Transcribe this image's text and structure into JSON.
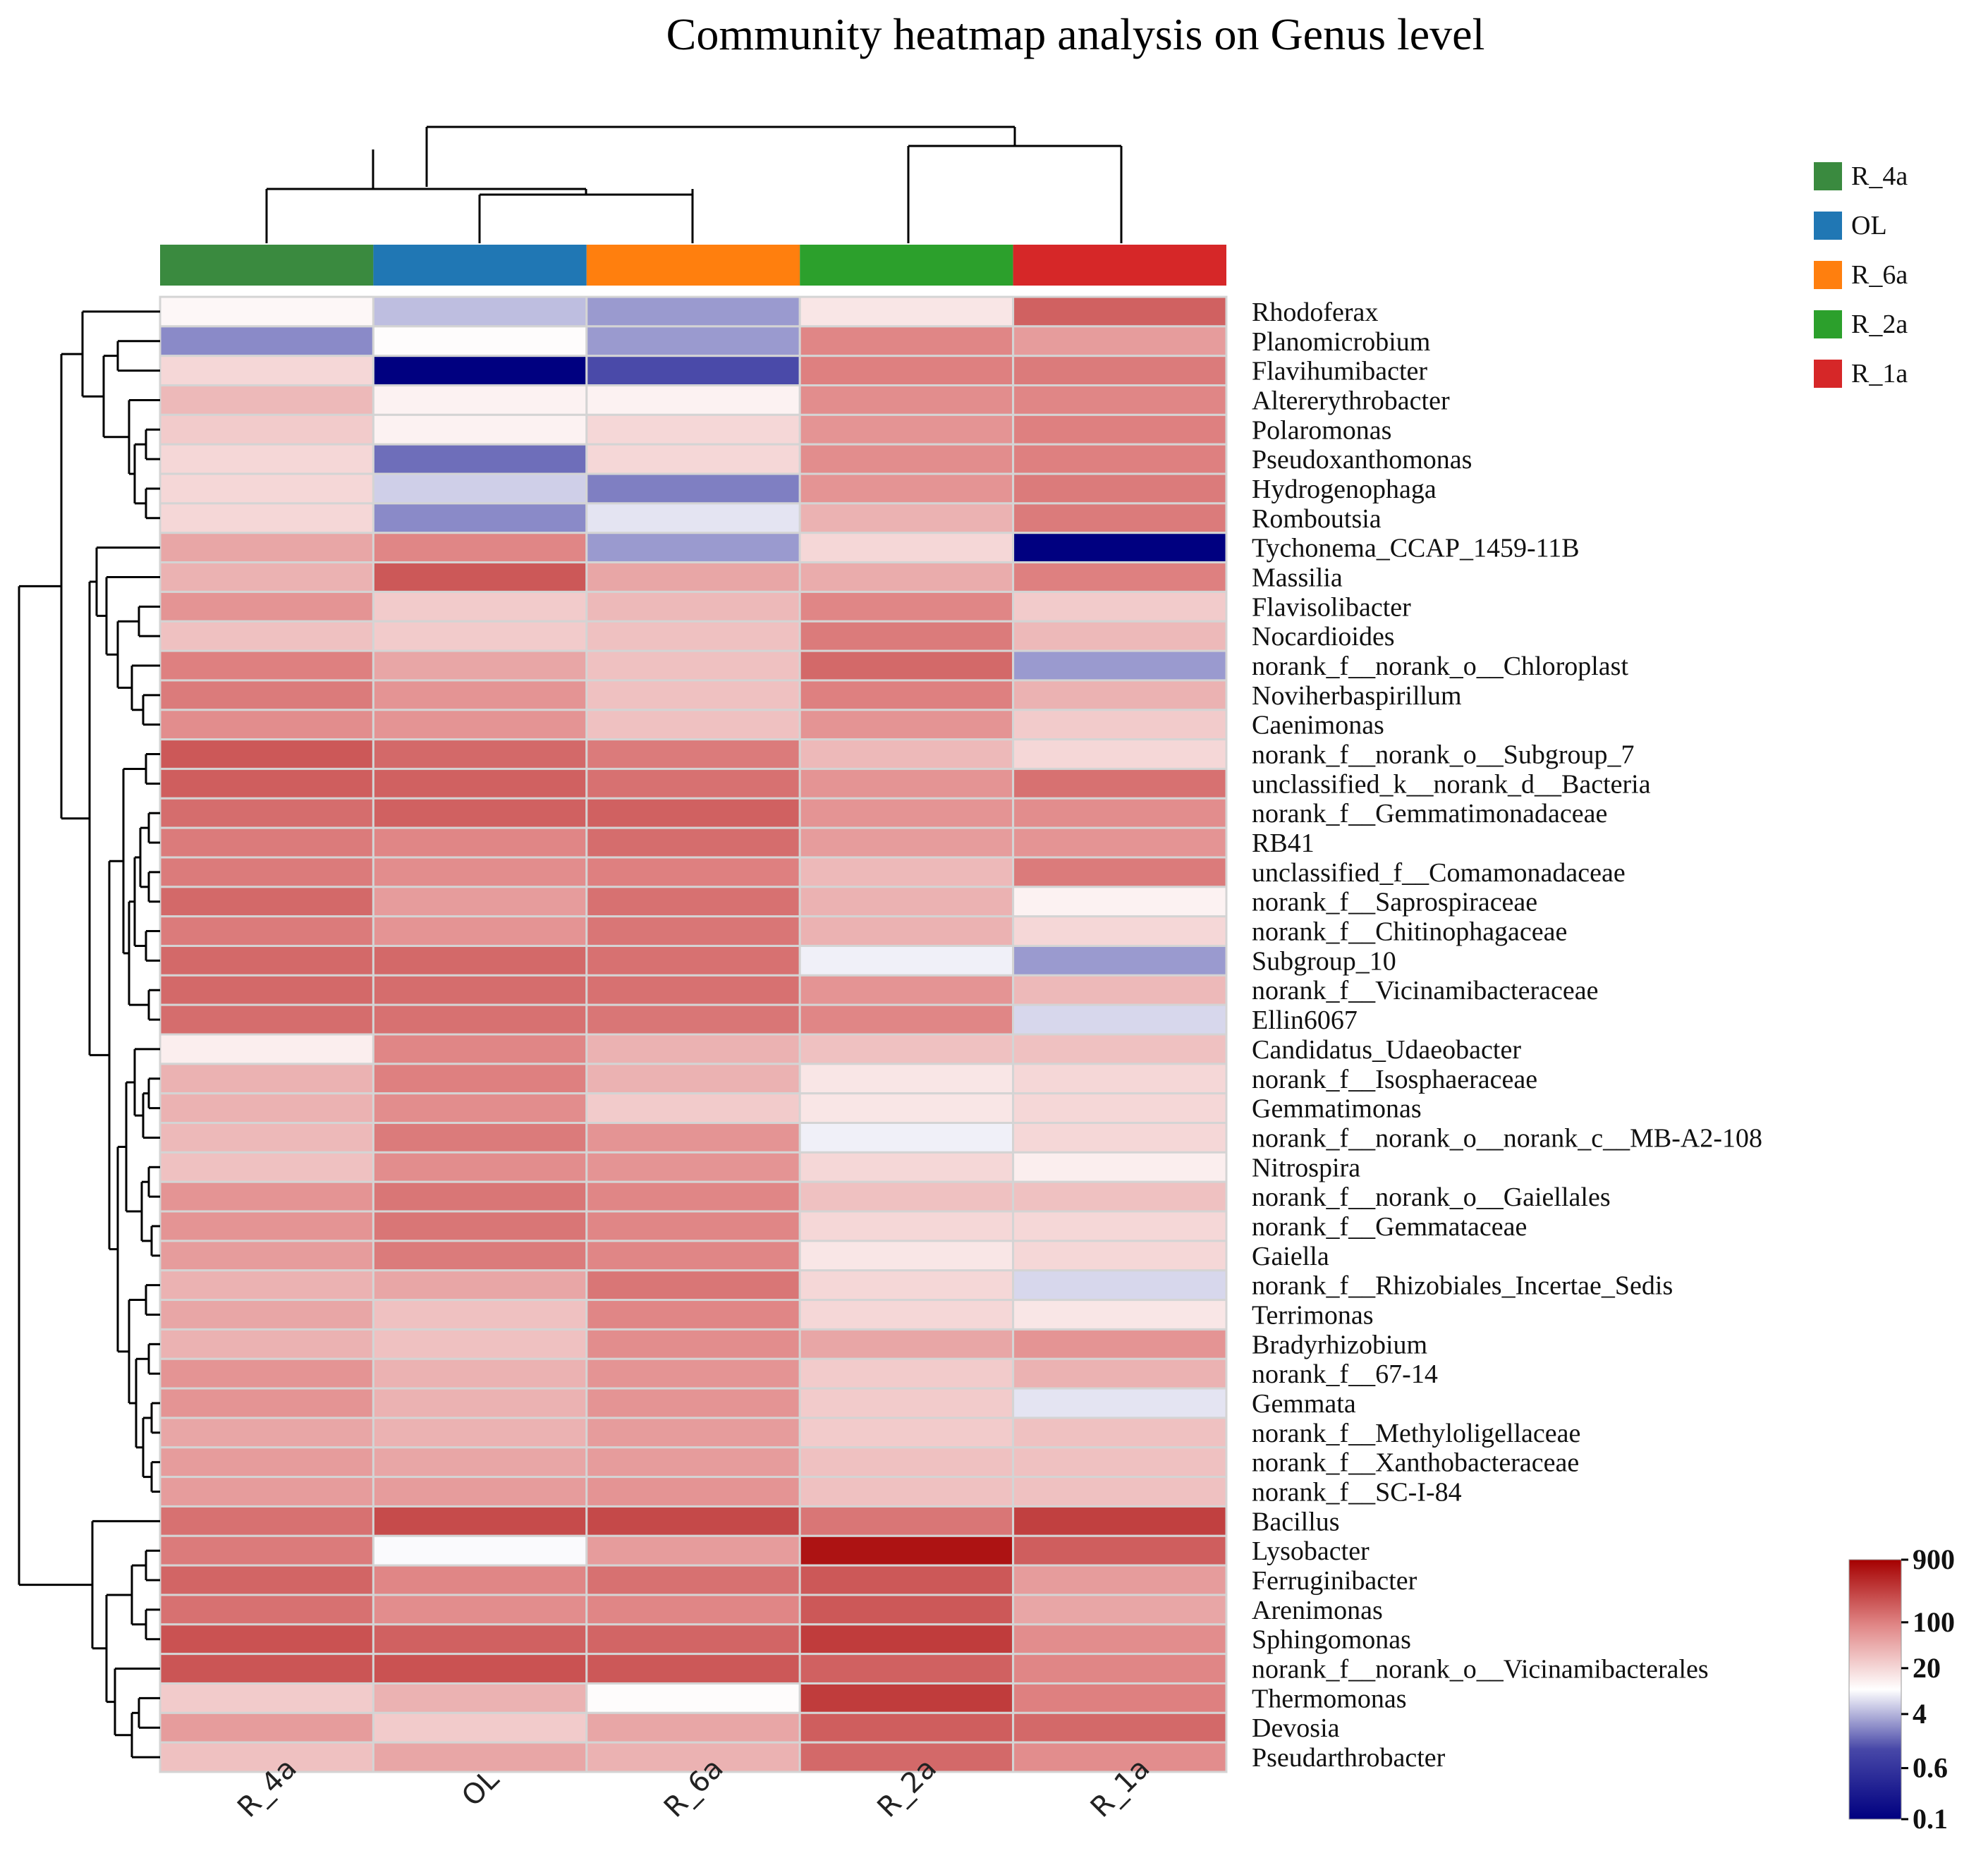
{
  "chart_data": {
    "type": "heatmap",
    "title": "Community heatmap analysis on Genus level",
    "value_scale": "log10 relative abundance",
    "columns": [
      "R_4a",
      "OL",
      "R_6a",
      "R_2a",
      "R_1a"
    ],
    "column_group_colors": [
      "#3a8a3f",
      "#2077b4",
      "#ff7f0e",
      "#2ca02c",
      "#d62728"
    ],
    "legend": [
      {
        "label": "R_4a",
        "color": "#3a8a3f"
      },
      {
        "label": "OL",
        "color": "#2077b4"
      },
      {
        "label": "R_6a",
        "color": "#ff7f0e"
      },
      {
        "label": "R_2a",
        "color": "#2ca02c"
      },
      {
        "label": "R_1a",
        "color": "#d62728"
      }
    ],
    "color_scale": {
      "ticks": [
        "900",
        "100",
        "20",
        "4",
        "0.6",
        "0.1"
      ],
      "tick_values": [
        900,
        100,
        20,
        4,
        0.6,
        0.1
      ],
      "colors": [
        "#000080",
        "#4040a0",
        "#ffffff",
        "#e08080",
        "#a00000"
      ]
    },
    "rows": [
      {
        "label": "Rhodoferax",
        "values": [
          11,
          4.5,
          3,
          15,
          170
        ]
      },
      {
        "label": "Planomicrobium",
        "values": [
          2.5,
          10,
          3,
          90,
          60
        ]
      },
      {
        "label": "Flavihumibacter",
        "values": [
          20,
          0.1,
          1.2,
          100,
          110
        ]
      },
      {
        "label": "Altererythrobacter",
        "values": [
          35,
          12,
          12,
          80,
          90
        ]
      },
      {
        "label": "Polaromonas",
        "values": [
          25,
          12,
          20,
          70,
          100
        ]
      },
      {
        "label": "Pseudoxanthomonas",
        "values": [
          20,
          1.8,
          20,
          80,
          100
        ]
      },
      {
        "label": "Hydrogenophaga",
        "values": [
          20,
          5.5,
          2.2,
          70,
          110
        ]
      },
      {
        "label": "Romboutsia",
        "values": [
          20,
          2.5,
          7,
          40,
          110
        ]
      },
      {
        "label": "Tychonema_CCAP_1459-11B",
        "values": [
          50,
          90,
          3,
          20,
          0.1
        ]
      },
      {
        "label": "Massilia",
        "values": [
          40,
          200,
          50,
          45,
          100
        ]
      },
      {
        "label": "Flavisolibacter",
        "values": [
          70,
          25,
          35,
          90,
          25
        ]
      },
      {
        "label": "Nocardioides",
        "values": [
          30,
          25,
          30,
          110,
          35
        ]
      },
      {
        "label": "norank_f__norank_o__Chloroplast",
        "values": [
          100,
          50,
          30,
          150,
          3
        ]
      },
      {
        "label": "Noviherbaspirillum",
        "values": [
          110,
          70,
          30,
          100,
          40
        ]
      },
      {
        "label": "Caenimonas",
        "values": [
          80,
          70,
          30,
          70,
          25
        ]
      },
      {
        "label": "norank_f__norank_o__Subgroup_7",
        "values": [
          200,
          150,
          110,
          35,
          20
        ]
      },
      {
        "label": "unclassified_k__norank_d__Bacteria",
        "values": [
          180,
          170,
          130,
          70,
          130
        ]
      },
      {
        "label": "norank_f__Gemmatimonadaceae",
        "values": [
          140,
          170,
          170,
          70,
          80
        ]
      },
      {
        "label": "RB41",
        "values": [
          110,
          90,
          140,
          60,
          70
        ]
      },
      {
        "label": "unclassified_f__Comamonadaceae",
        "values": [
          110,
          80,
          100,
          35,
          110
        ]
      },
      {
        "label": "norank_f__Saprospiraceae",
        "values": [
          150,
          60,
          130,
          40,
          12
        ]
      },
      {
        "label": "norank_f__Chitinophagaceae",
        "values": [
          110,
          70,
          120,
          40,
          20
        ]
      },
      {
        "label": "Subgroup_10",
        "values": [
          150,
          150,
          130,
          8,
          3
        ]
      },
      {
        "label": "norank_f__Vicinamibacteraceae",
        "values": [
          150,
          140,
          130,
          70,
          35
        ]
      },
      {
        "label": "Ellin6067",
        "values": [
          140,
          130,
          120,
          90,
          6
        ]
      },
      {
        "label": "Candidatus_Udaeobacter",
        "values": [
          13,
          90,
          40,
          30,
          30
        ]
      },
      {
        "label": "norank_f__Isosphaeraceae",
        "values": [
          40,
          100,
          40,
          15,
          20
        ]
      },
      {
        "label": "Gemmatimonas",
        "values": [
          40,
          80,
          25,
          15,
          20
        ]
      },
      {
        "label": "norank_f__norank_o__norank_c__MB-A2-108",
        "values": [
          35,
          110,
          70,
          8,
          20
        ]
      },
      {
        "label": "Nitrospira",
        "values": [
          30,
          80,
          70,
          20,
          13
        ]
      },
      {
        "label": "norank_f__norank_o__Gaiellales",
        "values": [
          70,
          120,
          90,
          30,
          30
        ]
      },
      {
        "label": "norank_f__Gemmataceae",
        "values": [
          70,
          120,
          90,
          20,
          20
        ]
      },
      {
        "label": "Gaiella",
        "values": [
          60,
          110,
          90,
          15,
          20
        ]
      },
      {
        "label": "norank_f__Rhizobiales_Incertae_Sedis",
        "values": [
          40,
          50,
          120,
          20,
          6
        ]
      },
      {
        "label": "Terrimonas",
        "values": [
          50,
          30,
          90,
          20,
          15
        ]
      },
      {
        "label": "Bradyrhizobium",
        "values": [
          40,
          30,
          80,
          50,
          70
        ]
      },
      {
        "label": "norank_f__67-14",
        "values": [
          70,
          40,
          70,
          25,
          40
        ]
      },
      {
        "label": "Gemmata",
        "values": [
          70,
          40,
          70,
          25,
          7
        ]
      },
      {
        "label": "norank_f__Methyloligellaceae",
        "values": [
          50,
          40,
          60,
          25,
          30
        ]
      },
      {
        "label": "norank_f__Xanthobacteraceae",
        "values": [
          60,
          50,
          60,
          30,
          30
        ]
      },
      {
        "label": "norank_f__SC-I-84",
        "values": [
          60,
          60,
          70,
          30,
          30
        ]
      },
      {
        "label": "Bacillus",
        "values": [
          130,
          250,
          260,
          120,
          300
        ]
      },
      {
        "label": "Lysobacter",
        "values": [
          110,
          9,
          60,
          650,
          180
        ]
      },
      {
        "label": "Ferruginibacter",
        "values": [
          160,
          90,
          130,
          200,
          60
        ]
      },
      {
        "label": "Arenimonas",
        "values": [
          130,
          80,
          90,
          200,
          50
        ]
      },
      {
        "label": "Sphingomonas",
        "values": [
          220,
          170,
          160,
          320,
          80
        ]
      },
      {
        "label": "norank_f__norank_o__Vicinamibacterales",
        "values": [
          210,
          220,
          200,
          170,
          90
        ]
      },
      {
        "label": "Thermomonas",
        "values": [
          25,
          40,
          10,
          320,
          100
        ]
      },
      {
        "label": "Devosia",
        "values": [
          60,
          25,
          50,
          180,
          150
        ]
      },
      {
        "label": "Pseudarthrobacter",
        "values": [
          30,
          50,
          40,
          150,
          80
        ]
      }
    ]
  }
}
